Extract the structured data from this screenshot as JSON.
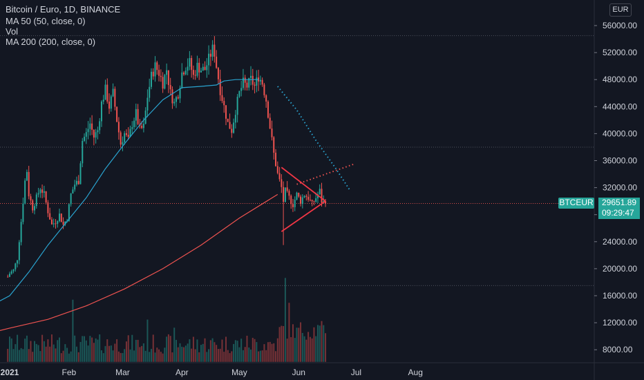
{
  "legend": {
    "title": "Bitcoin / Euro, 1D, BINANCE",
    "ma50": "MA 50 (50, close, 0)",
    "vol": "Vol",
    "ma200": "MA 200 (200, close, 0)"
  },
  "currency": "EUR",
  "price_tag": {
    "symbol": "BTCEUR",
    "price": "29651.89",
    "countdown": "09:29:47"
  },
  "colors": {
    "up": "#26a69a",
    "down": "#ef5350",
    "ma50": "#2aa4d0",
    "ma200": "#ef5350",
    "background": "#131722",
    "triangle": "#f23645"
  },
  "chart_data": {
    "type": "candlestick",
    "title": "Bitcoin / Euro, 1D, BINANCE",
    "x_axis": {
      "ticks": [
        "2021",
        "Feb",
        "Mar",
        "Apr",
        "May",
        "Jun",
        "Jul",
        "Aug"
      ]
    },
    "y_axis": {
      "ticks": [
        "56000.00",
        "52000.00",
        "48000.00",
        "44000.00",
        "40000.00",
        "36000.00",
        "32000.00",
        "28000.00",
        "24000.00",
        "20000.00",
        "16000.00",
        "12000.00",
        "8000.00"
      ],
      "range": [
        6000,
        58000
      ],
      "side": "right"
    },
    "horizontal_levels": [
      54500,
      38000,
      29652,
      17500
    ],
    "close_series": [
      [
        -1,
        18800
      ],
      [
        0,
        19300
      ],
      [
        2,
        19800
      ],
      [
        4,
        21500
      ],
      [
        6,
        27000
      ],
      [
        8,
        33000
      ],
      [
        9,
        34500
      ],
      [
        10,
        31000
      ],
      [
        12,
        29000
      ],
      [
        14,
        30500
      ],
      [
        16,
        32000
      ],
      [
        18,
        31000
      ],
      [
        20,
        28500
      ],
      [
        22,
        26500
      ],
      [
        24,
        27000
      ],
      [
        26,
        28000
      ],
      [
        28,
        26500
      ],
      [
        30,
        27500
      ],
      [
        32,
        31000
      ],
      [
        34,
        32500
      ],
      [
        36,
        33000
      ],
      [
        38,
        39000
      ],
      [
        40,
        40000
      ],
      [
        42,
        41500
      ],
      [
        44,
        39500
      ],
      [
        46,
        40500
      ],
      [
        48,
        44500
      ],
      [
        50,
        46500
      ],
      [
        52,
        44000
      ],
      [
        54,
        46000
      ],
      [
        56,
        42000
      ],
      [
        58,
        38500
      ],
      [
        60,
        40000
      ],
      [
        62,
        39000
      ],
      [
        64,
        41500
      ],
      [
        66,
        43000
      ],
      [
        68,
        40500
      ],
      [
        70,
        41000
      ],
      [
        72,
        45500
      ],
      [
        74,
        48500
      ],
      [
        76,
        50000
      ],
      [
        78,
        49000
      ],
      [
        80,
        47500
      ],
      [
        82,
        49500
      ],
      [
        84,
        46000
      ],
      [
        86,
        44500
      ],
      [
        88,
        46000
      ],
      [
        90,
        49000
      ],
      [
        92,
        50000
      ],
      [
        94,
        50500
      ],
      [
        96,
        48500
      ],
      [
        98,
        50000
      ],
      [
        100,
        49500
      ],
      [
        102,
        49500
      ],
      [
        104,
        51000
      ],
      [
        106,
        52500
      ],
      [
        107,
        52000
      ],
      [
        108,
        50000
      ],
      [
        110,
        46500
      ],
      [
        112,
        44000
      ],
      [
        114,
        41500
      ],
      [
        116,
        40500
      ],
      [
        118,
        43500
      ],
      [
        120,
        46000
      ],
      [
        122,
        47500
      ],
      [
        124,
        47000
      ],
      [
        126,
        48000
      ],
      [
        128,
        47000
      ],
      [
        130,
        48500
      ],
      [
        132,
        47500
      ],
      [
        134,
        45000
      ],
      [
        136,
        41000
      ],
      [
        138,
        37000
      ],
      [
        140,
        34000
      ],
      [
        142,
        32000
      ],
      [
        143,
        30000
      ],
      [
        144,
        31500
      ],
      [
        146,
        30500
      ],
      [
        148,
        29500
      ],
      [
        150,
        31000
      ],
      [
        152,
        30000
      ],
      [
        154,
        31000
      ],
      [
        156,
        30500
      ],
      [
        158,
        29500
      ],
      [
        160,
        30500
      ],
      [
        162,
        31500
      ],
      [
        163,
        30000
      ],
      [
        165,
        29652
      ]
    ],
    "volume": {
      "max_value": 12000,
      "spikes": [
        [
          33,
          1.0
        ],
        [
          72,
          0.68
        ],
        [
          86,
          0.55
        ],
        [
          144,
          1.35
        ],
        [
          146,
          0.95
        ],
        [
          150,
          0.55
        ]
      ]
    },
    "ma50": [
      [
        -10,
        14500
      ],
      [
        0,
        16000
      ],
      [
        10,
        19500
      ],
      [
        20,
        23500
      ],
      [
        30,
        27000
      ],
      [
        40,
        30500
      ],
      [
        50,
        34800
      ],
      [
        60,
        38500
      ],
      [
        70,
        42000
      ],
      [
        80,
        45000
      ],
      [
        90,
        46800
      ],
      [
        100,
        47000
      ],
      [
        108,
        47200
      ],
      [
        112,
        47800
      ],
      [
        118,
        48000
      ],
      [
        130,
        48000
      ],
      [
        140,
        47000
      ],
      [
        150,
        43500
      ],
      [
        160,
        39000
      ],
      [
        170,
        35000
      ],
      [
        178,
        31500
      ]
    ],
    "ma50_projection_from": 136,
    "ma200": [
      [
        -10,
        10500
      ],
      [
        0,
        11200
      ],
      [
        20,
        12500
      ],
      [
        40,
        14500
      ],
      [
        60,
        17000
      ],
      [
        80,
        20000
      ],
      [
        100,
        23500
      ],
      [
        120,
        27500
      ],
      [
        140,
        31000
      ],
      [
        150,
        32500
      ],
      [
        160,
        33500
      ],
      [
        170,
        34500
      ],
      [
        180,
        35500
      ]
    ],
    "ma200_projection_from": 145,
    "triangle": {
      "upper": [
        [
          142,
          35000
        ],
        [
          165,
          30000
        ]
      ],
      "lower": [
        [
          142,
          25500
        ],
        [
          165,
          30000
        ]
      ]
    }
  }
}
